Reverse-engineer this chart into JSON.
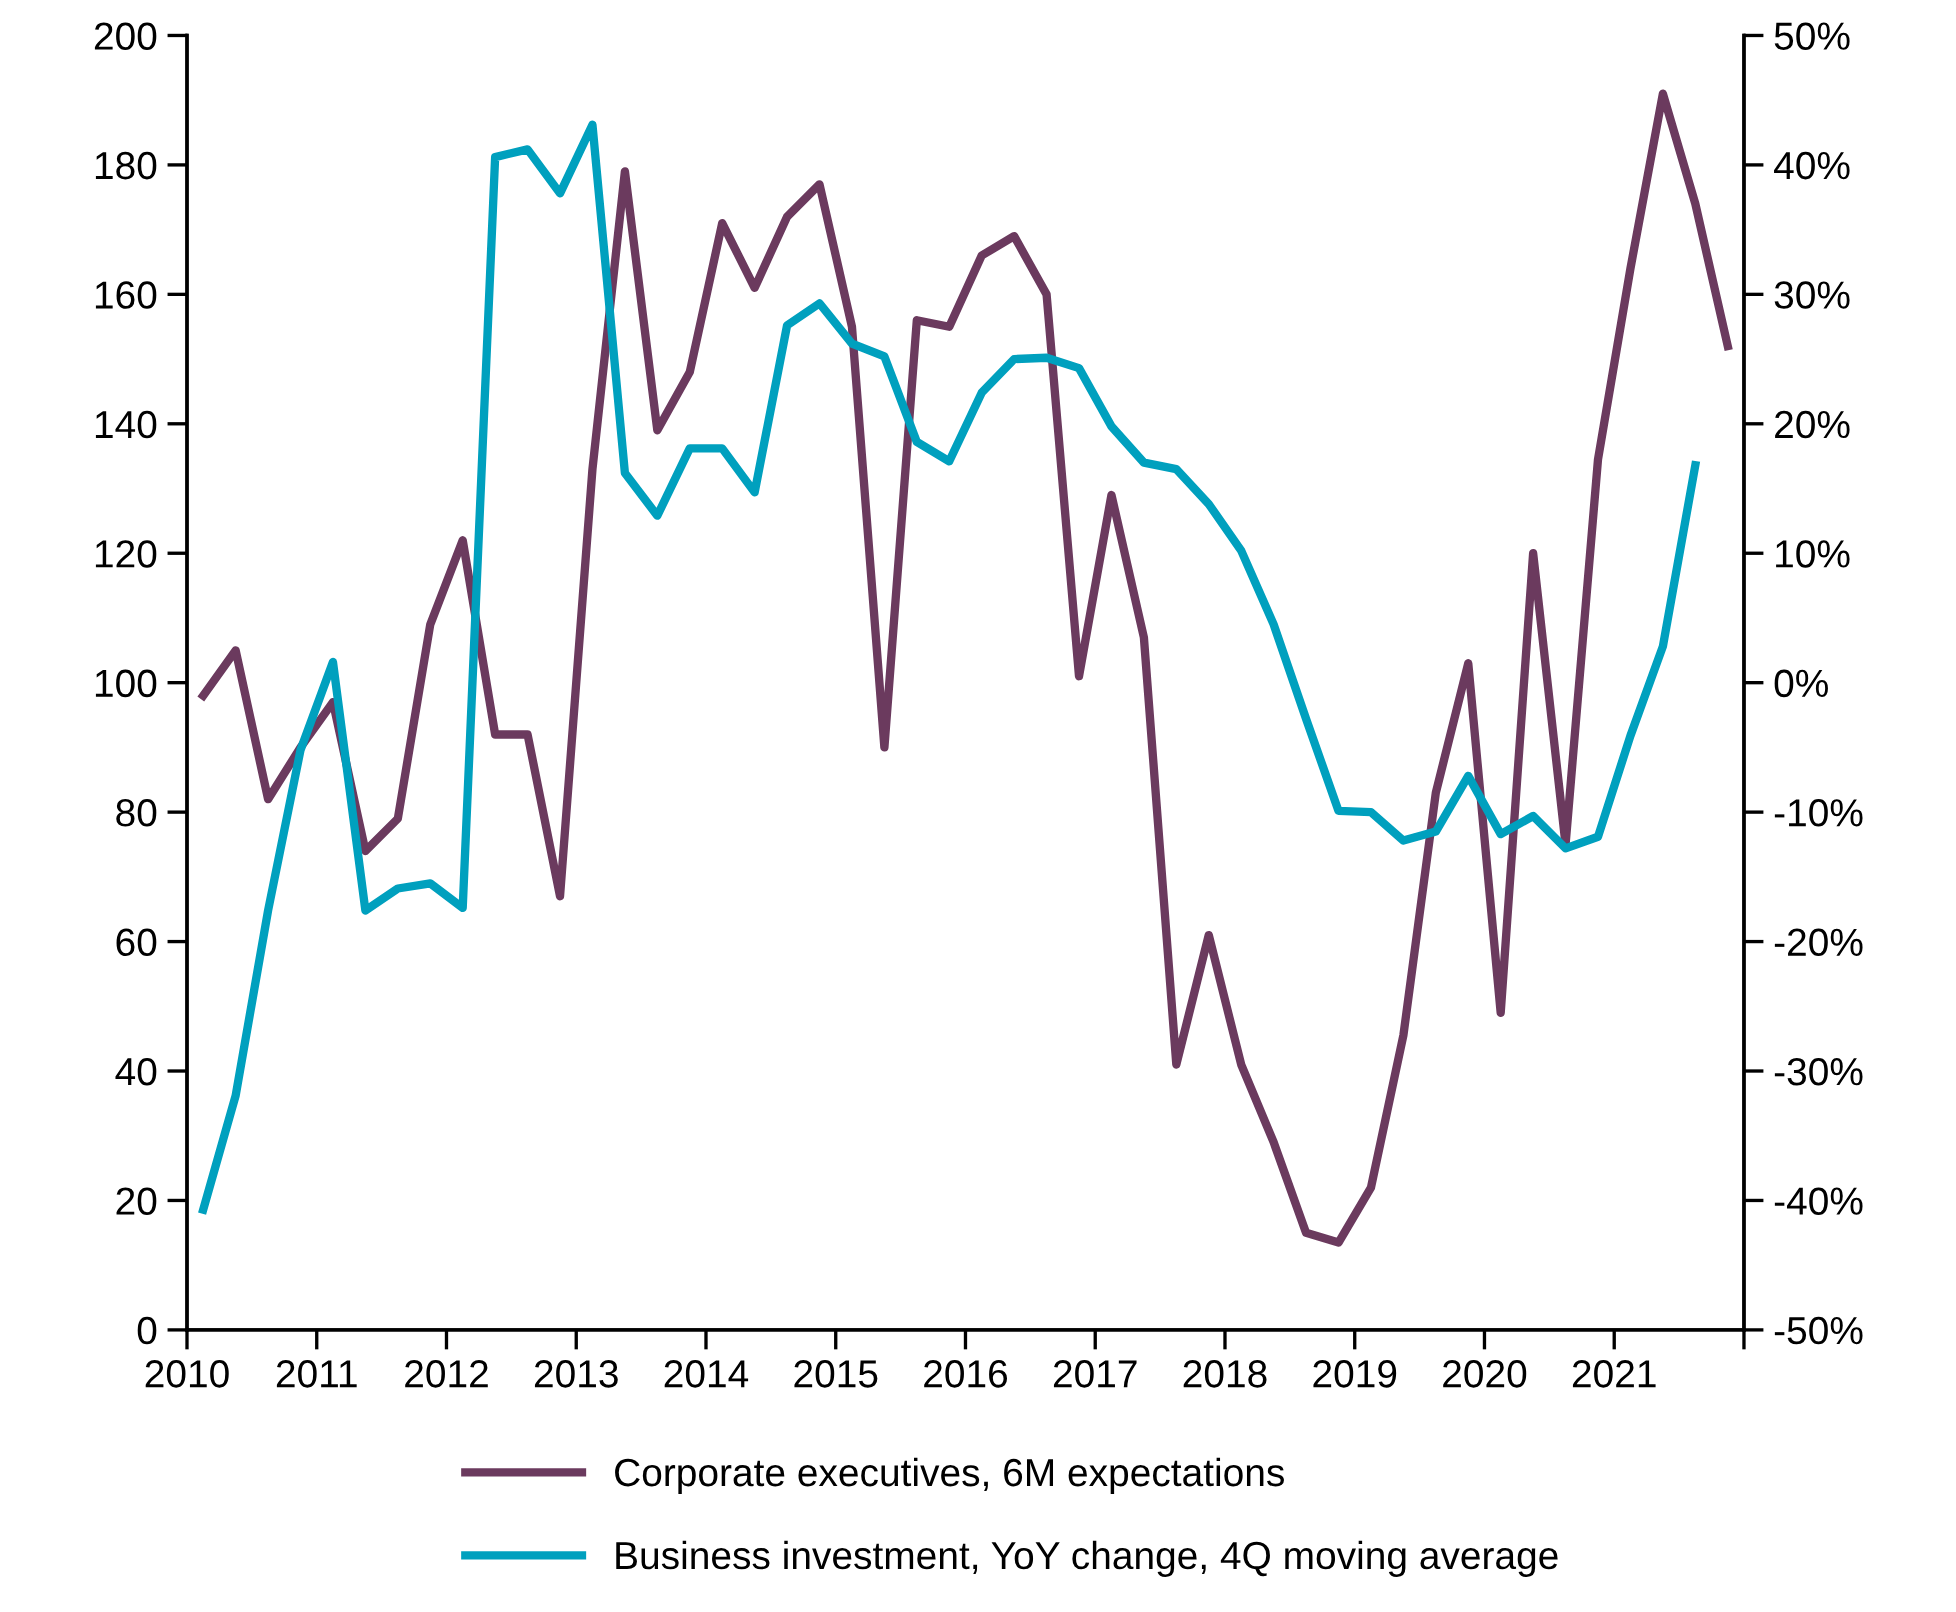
{
  "chart_data": {
    "type": "line",
    "xlim": [
      2010,
      2022
    ],
    "xticks": [
      2010,
      2011,
      2012,
      2013,
      2014,
      2015,
      2016,
      2017,
      2018,
      2019,
      2020,
      2021,
      {
        "value": 2022,
        "label": null
      }
    ],
    "ylim": [
      0,
      200
    ],
    "yticks": [
      0,
      20,
      40,
      60,
      80,
      100,
      120,
      140,
      160,
      180,
      200
    ],
    "y2lim": [
      -50,
      50
    ],
    "y2ticks": [
      {
        "value": -50,
        "label": "-50%"
      },
      {
        "value": -40,
        "label": "-40%"
      },
      {
        "value": -30,
        "label": "-30%"
      },
      {
        "value": -20,
        "label": "-20%"
      },
      {
        "value": -10,
        "label": "-10%"
      },
      {
        "value": 0,
        "label": "0%"
      },
      {
        "value": 10,
        "label": "10%"
      },
      {
        "value": 20,
        "label": "20%"
      },
      {
        "value": 30,
        "label": "30%"
      },
      {
        "value": 40,
        "label": "40%"
      },
      {
        "value": 50,
        "label": "50%"
      }
    ],
    "grid": false,
    "legend": "bottom",
    "marker": "none",
    "line_style": "solid",
    "series": [
      {
        "name": "Corporate executives, 6M expectations",
        "color": "#6b3a5e",
        "x": [
          2010.125,
          2010.375,
          2010.625,
          2010.875,
          2011.125,
          2011.375,
          2011.625,
          2011.875,
          2012.125,
          2012.375,
          2012.625,
          2012.875,
          2013.125,
          2013.375,
          2013.625,
          2013.875,
          2014.125,
          2014.375,
          2014.625,
          2014.875,
          2015.125,
          2015.375,
          2015.625,
          2015.875,
          2016.125,
          2016.375,
          2016.625,
          2016.875,
          2017.125,
          2017.375,
          2017.625,
          2017.875,
          2018.125,
          2018.375,
          2018.625,
          2018.875,
          2019.125,
          2019.375,
          2019.625,
          2019.875,
          2020.125,
          2020.375,
          2020.625,
          2020.875,
          2021.125,
          2021.375,
          2021.625,
          2021.875
        ],
        "values": [
          98,
          105,
          82,
          90,
          97,
          74,
          79,
          109,
          122,
          92,
          92,
          67,
          133,
          179,
          139,
          148,
          171,
          161,
          172,
          177,
          155,
          90,
          156,
          155,
          166,
          169,
          160,
          101,
          129,
          107,
          41,
          61,
          41,
          29,
          15,
          13.5,
          22,
          45.5,
          83,
          103,
          49,
          120,
          75,
          134.5,
          164,
          191,
          174,
          152
        ]
      },
      {
        "name": "Business investment, YoY change, 4Q moving average",
        "color": "#00a0be",
        "axis": "y2",
        "x": [
          2010.125,
          2010.375,
          2010.625,
          2010.875,
          2011.125,
          2011.375,
          2011.625,
          2011.875,
          2012.125,
          2012.375,
          2012.625,
          2012.875,
          2013.125,
          2013.375,
          2013.625,
          2013.875,
          2014.125,
          2014.375,
          2014.625,
          2014.875,
          2015.125,
          2015.375,
          2015.625,
          2015.875,
          2016.125,
          2016.375,
          2016.625,
          2016.875,
          2017.125,
          2017.375,
          2017.625,
          2017.875,
          2018.125,
          2018.375,
          2018.625,
          2018.875,
          2019.125,
          2019.375,
          2019.625,
          2019.875,
          2020.125,
          2020.375,
          2020.625,
          2020.875,
          2021.125,
          2021.375,
          2021.625
        ],
        "values": [
          -40.7,
          -31.9,
          -17.6,
          -5.2,
          1.6,
          -17.6,
          -15.9,
          -15.5,
          -17.4,
          40.6,
          41.2,
          37.8,
          43.1,
          16.2,
          12.9,
          18.1,
          18.1,
          14.7,
          27.6,
          29.3,
          26.2,
          25.2,
          18.6,
          17.1,
          22.4,
          25.0,
          25.1,
          24.3,
          19.8,
          17.0,
          16.5,
          13.8,
          10.2,
          4.5,
          -2.8,
          -9.9,
          -10.0,
          -12.2,
          -11.5,
          -7.2,
          -11.7,
          -10.3,
          -12.8,
          -11.9,
          -4.1,
          2.8,
          16.8
        ]
      }
    ]
  }
}
